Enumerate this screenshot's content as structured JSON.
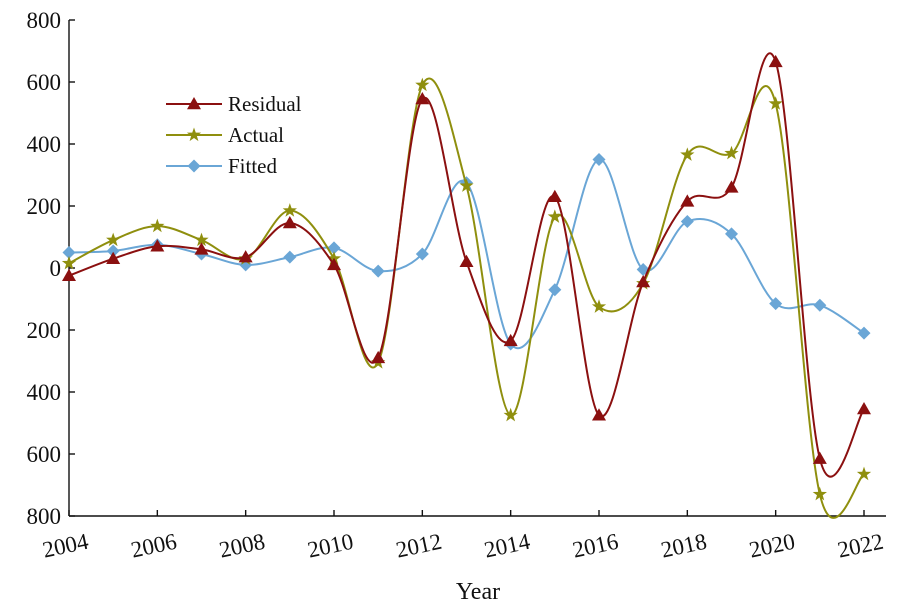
{
  "chart_data": {
    "type": "line",
    "title": "",
    "xlabel": "Year",
    "ylabel": "",
    "x": [
      2004,
      2005,
      2006,
      2007,
      2008,
      2009,
      2010,
      2011,
      2012,
      2013,
      2014,
      2015,
      2016,
      2017,
      2018,
      2019,
      2020,
      2021,
      2022
    ],
    "x_ticks": [
      2004,
      2006,
      2008,
      2010,
      2012,
      2014,
      2016,
      2018,
      2020,
      2022
    ],
    "x_tick_labels": [
      "2004",
      "2006",
      "2008",
      "2010",
      "2012",
      "2014",
      "2016",
      "2018",
      "2020",
      "2022"
    ],
    "y_ticks": [
      800,
      600,
      400,
      200,
      0,
      -200,
      -400,
      -600,
      -800
    ],
    "y_tick_labels": [
      "800",
      "600",
      "400",
      "200",
      "0",
      "200",
      "400",
      "600",
      "800"
    ],
    "xlim": [
      2004,
      2022
    ],
    "ylim": [
      -800,
      800
    ],
    "grid": false,
    "legend_position": "upper-left",
    "series": [
      {
        "name": "Residual",
        "color": "#8b1010",
        "marker": "triangle",
        "values": [
          -25,
          30,
          70,
          60,
          35,
          145,
          10,
          -290,
          545,
          20,
          -235,
          230,
          -475,
          -45,
          215,
          260,
          665,
          -615,
          -455
        ]
      },
      {
        "name": "Actual",
        "color": "#8f8f0e",
        "marker": "star",
        "values": [
          15,
          90,
          135,
          90,
          30,
          185,
          30,
          -305,
          590,
          265,
          -475,
          165,
          -125,
          -50,
          365,
          370,
          530,
          -730,
          -665
        ]
      },
      {
        "name": "Fitted",
        "color": "#6aa6d6",
        "marker": "diamond",
        "values": [
          50,
          55,
          75,
          45,
          10,
          35,
          65,
          -10,
          45,
          275,
          -245,
          -70,
          350,
          -5,
          150,
          110,
          -115,
          -120,
          -210
        ]
      }
    ]
  }
}
